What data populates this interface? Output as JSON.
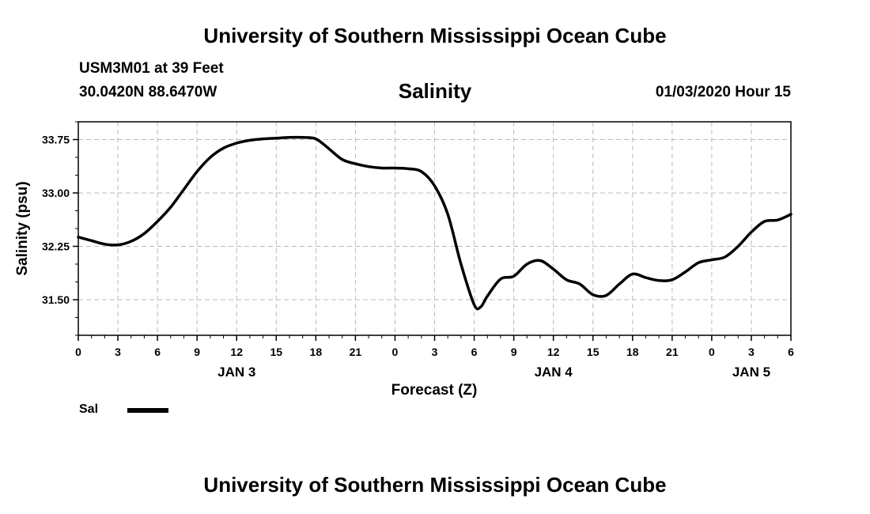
{
  "header": {
    "main_title": "University of Southern Mississippi Ocean Cube",
    "station": "USM3M01 at 39 Feet",
    "coordinates": "30.0420N 88.6470W",
    "datetime": "01/03/2020 Hour 15"
  },
  "footer": {
    "title": "University of Southern Mississippi Ocean Cube"
  },
  "legend": {
    "label": "Sal",
    "color": "#000000"
  },
  "chart_data": {
    "type": "line",
    "title": "Salinity",
    "xlabel": "Forecast (Z)",
    "ylabel": "Salinity (psu)",
    "xlim": [
      0,
      54
    ],
    "ylim": [
      31.0,
      34.0
    ],
    "x_ticks": [
      0,
      3,
      6,
      9,
      12,
      15,
      18,
      21,
      24,
      27,
      30,
      33,
      36,
      39,
      42,
      45,
      48,
      51,
      54
    ],
    "x_tick_labels": [
      "0",
      "3",
      "6",
      "9",
      "12",
      "15",
      "18",
      "21",
      "0",
      "3",
      "6",
      "9",
      "12",
      "15",
      "18",
      "21",
      "0",
      "3",
      "6"
    ],
    "date_labels": [
      {
        "x": 12,
        "label": "JAN 3"
      },
      {
        "x": 36,
        "label": "JAN 4"
      },
      {
        "x": 51,
        "label": "JAN 5"
      }
    ],
    "y_ticks": [
      31.5,
      32.25,
      33.0,
      33.75
    ],
    "y_tick_labels": [
      "31.50",
      "32.25",
      "33.00",
      "33.75"
    ],
    "grid": true,
    "legend_position": "bottom-left",
    "series": [
      {
        "name": "Sal",
        "color": "#000000",
        "x": [
          0,
          1,
          2,
          3,
          4,
          5,
          6,
          7,
          8,
          9,
          10,
          11,
          12,
          13,
          14,
          15,
          16,
          17,
          18,
          19,
          20,
          21,
          22,
          23,
          24,
          25,
          26,
          27,
          28,
          29,
          30,
          30.5,
          31,
          32,
          33,
          34,
          35,
          36,
          37,
          38,
          39,
          40,
          41,
          42,
          43,
          44,
          45,
          46,
          47,
          48,
          49,
          50,
          51,
          52,
          53,
          54
        ],
        "values": [
          32.38,
          32.33,
          32.28,
          32.27,
          32.32,
          32.43,
          32.6,
          32.8,
          33.05,
          33.3,
          33.5,
          33.63,
          33.7,
          33.74,
          33.76,
          33.77,
          33.78,
          33.78,
          33.76,
          33.62,
          33.47,
          33.41,
          33.37,
          33.35,
          33.35,
          33.34,
          33.3,
          33.1,
          32.7,
          32.0,
          31.43,
          31.4,
          31.55,
          31.79,
          31.83,
          32.0,
          32.05,
          31.93,
          31.78,
          31.72,
          31.57,
          31.56,
          31.72,
          31.86,
          31.81,
          31.77,
          31.78,
          31.89,
          32.02,
          32.06,
          32.1,
          32.25,
          32.45,
          32.6,
          32.62,
          32.7
        ]
      }
    ]
  }
}
